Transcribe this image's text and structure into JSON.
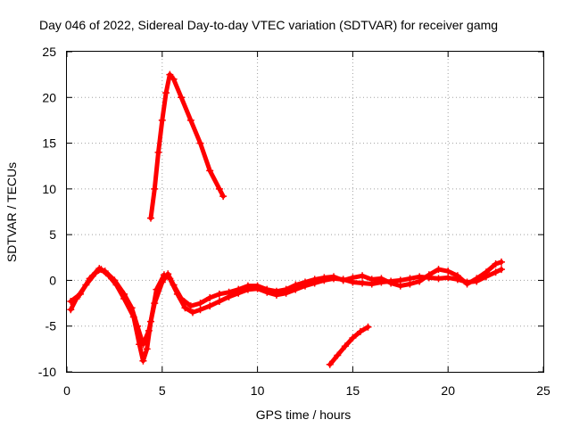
{
  "chart_data": {
    "type": "scatter",
    "title": "Day 046 of 2022, Sidereal Day-to-day VTEC variation (SDTVAR) for receiver gamg",
    "xlabel": "GPS time / hours",
    "ylabel": "SDTVAR / TECUs",
    "xlim": [
      0,
      25
    ],
    "ylim": [
      -10,
      25
    ],
    "xticks": [
      "0",
      "5",
      "10",
      "15",
      "20",
      "25"
    ],
    "yticks": [
      "-10",
      "-5",
      "0",
      "5",
      "10",
      "15",
      "20",
      "25"
    ],
    "grid": true,
    "marker_color": "#ff0000",
    "series": [
      {
        "name": "high-arc",
        "points": [
          [
            4.4,
            6.8
          ],
          [
            4.6,
            10.0
          ],
          [
            4.8,
            14.0
          ],
          [
            5.0,
            17.5
          ],
          [
            5.2,
            20.5
          ],
          [
            5.4,
            22.5
          ],
          [
            5.6,
            22.0
          ],
          [
            6.0,
            20.0
          ],
          [
            6.5,
            17.5
          ],
          [
            7.0,
            15.0
          ],
          [
            7.5,
            12.0
          ],
          [
            8.0,
            10.0
          ],
          [
            8.2,
            9.2
          ]
        ]
      },
      {
        "name": "main-track",
        "points": [
          [
            0.2,
            -3.2
          ],
          [
            0.5,
            -2.0
          ],
          [
            1.0,
            -0.5
          ],
          [
            1.5,
            0.8
          ],
          [
            1.8,
            1.2
          ],
          [
            2.2,
            0.5
          ],
          [
            2.6,
            -0.5
          ],
          [
            3.0,
            -2.0
          ],
          [
            3.5,
            -4.0
          ],
          [
            3.8,
            -7.0
          ],
          [
            4.0,
            -8.8
          ],
          [
            4.2,
            -7.5
          ],
          [
            4.4,
            -4.5
          ],
          [
            4.7,
            -1.0
          ],
          [
            5.1,
            0.6
          ],
          [
            5.4,
            0.2
          ],
          [
            5.8,
            -1.5
          ],
          [
            6.2,
            -3.0
          ],
          [
            6.6,
            -3.5
          ],
          [
            7.0,
            -3.2
          ],
          [
            7.5,
            -2.8
          ],
          [
            8.0,
            -2.3
          ],
          [
            8.5,
            -1.8
          ],
          [
            9.0,
            -1.4
          ],
          [
            9.5,
            -1.0
          ],
          [
            10.0,
            -0.9
          ],
          [
            10.5,
            -1.3
          ],
          [
            11.0,
            -1.6
          ],
          [
            11.5,
            -1.4
          ],
          [
            12.0,
            -1.0
          ],
          [
            12.5,
            -0.6
          ],
          [
            13.0,
            -0.3
          ],
          [
            13.5,
            0.0
          ],
          [
            14.0,
            0.2
          ],
          [
            14.5,
            0.1
          ],
          [
            15.0,
            -0.2
          ],
          [
            15.5,
            -0.3
          ],
          [
            16.0,
            -0.4
          ],
          [
            16.5,
            -0.2
          ],
          [
            17.0,
            -0.1
          ],
          [
            17.5,
            0.0
          ],
          [
            18.0,
            0.2
          ],
          [
            18.5,
            0.4
          ],
          [
            19.0,
            0.3
          ],
          [
            19.5,
            0.2
          ],
          [
            20.0,
            0.3
          ],
          [
            20.5,
            0.1
          ],
          [
            21.0,
            -0.2
          ],
          [
            21.5,
            -0.1
          ],
          [
            22.0,
            0.4
          ],
          [
            22.5,
            0.9
          ],
          [
            22.8,
            1.2
          ]
        ]
      },
      {
        "name": "main-track-b",
        "points": [
          [
            0.2,
            -2.3
          ],
          [
            0.7,
            -1.5
          ],
          [
            1.2,
            0.2
          ],
          [
            1.7,
            1.3
          ],
          [
            2.0,
            1.0
          ],
          [
            2.5,
            0.0
          ],
          [
            3.0,
            -1.5
          ],
          [
            3.4,
            -3.0
          ],
          [
            3.7,
            -5.0
          ],
          [
            4.0,
            -7.0
          ],
          [
            4.3,
            -5.5
          ],
          [
            4.6,
            -2.5
          ],
          [
            5.0,
            -0.2
          ],
          [
            5.3,
            0.7
          ],
          [
            5.6,
            -0.5
          ],
          [
            6.0,
            -2.0
          ],
          [
            6.5,
            -2.8
          ],
          [
            7.0,
            -2.5
          ],
          [
            7.5,
            -1.9
          ],
          [
            8.0,
            -1.5
          ],
          [
            8.5,
            -1.3
          ],
          [
            9.0,
            -1.0
          ],
          [
            9.5,
            -0.6
          ],
          [
            10.0,
            -0.6
          ],
          [
            10.5,
            -1.0
          ],
          [
            11.0,
            -1.2
          ],
          [
            11.5,
            -1.0
          ],
          [
            12.0,
            -0.5
          ],
          [
            12.5,
            -0.2
          ],
          [
            13.0,
            0.1
          ],
          [
            13.5,
            0.3
          ],
          [
            14.0,
            0.4
          ],
          [
            14.5,
            0.0
          ],
          [
            15.0,
            0.3
          ],
          [
            15.5,
            0.5
          ],
          [
            16.0,
            0.1
          ],
          [
            16.5,
            0.2
          ],
          [
            17.0,
            -0.3
          ],
          [
            17.5,
            -0.6
          ],
          [
            18.0,
            -0.4
          ],
          [
            18.5,
            -0.1
          ],
          [
            19.0,
            0.6
          ],
          [
            19.5,
            1.2
          ],
          [
            20.0,
            1.0
          ],
          [
            20.5,
            0.5
          ],
          [
            21.0,
            -0.4
          ],
          [
            21.5,
            0.2
          ],
          [
            22.0,
            0.9
          ],
          [
            22.5,
            1.8
          ],
          [
            22.8,
            2.0
          ]
        ]
      },
      {
        "name": "low-segment",
        "points": [
          [
            13.8,
            -9.2
          ],
          [
            14.2,
            -8.2
          ],
          [
            14.6,
            -7.2
          ],
          [
            15.0,
            -6.3
          ],
          [
            15.4,
            -5.6
          ],
          [
            15.8,
            -5.1
          ]
        ]
      }
    ]
  }
}
